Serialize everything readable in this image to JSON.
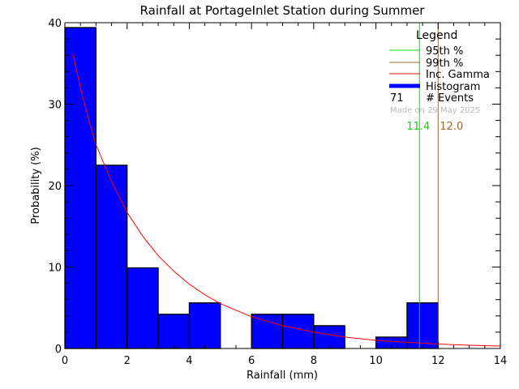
{
  "chart_data": {
    "type": "bar",
    "title": "Rainfall at PortageInlet Station during Summer",
    "xlabel": "Rainfall (mm)",
    "ylabel": "Probability (%)",
    "xlim": [
      0,
      14
    ],
    "ylim": [
      0,
      40
    ],
    "xticks": [
      "0",
      "2",
      "4",
      "6",
      "8",
      "10",
      "12",
      "14"
    ],
    "yticks": [
      "0",
      "10",
      "20",
      "30",
      "40"
    ],
    "grid": false,
    "legend_position": "top-right",
    "bins": [
      {
        "from": 0,
        "to": 1,
        "value": 39.4
      },
      {
        "from": 1,
        "to": 2,
        "value": 22.5
      },
      {
        "from": 2,
        "to": 3,
        "value": 9.9
      },
      {
        "from": 3,
        "to": 4,
        "value": 4.2
      },
      {
        "from": 4,
        "to": 5,
        "value": 5.6
      },
      {
        "from": 5,
        "to": 6,
        "value": 0
      },
      {
        "from": 6,
        "to": 7,
        "value": 4.2
      },
      {
        "from": 7,
        "to": 8,
        "value": 4.2
      },
      {
        "from": 8,
        "to": 9,
        "value": 2.8
      },
      {
        "from": 9,
        "to": 10,
        "value": 0
      },
      {
        "from": 10,
        "to": 11,
        "value": 1.4
      },
      {
        "from": 11,
        "to": 12,
        "value": 5.6
      }
    ],
    "gamma_curve": [
      [
        0.25,
        36.3
      ],
      [
        0.5,
        32
      ],
      [
        0.75,
        28.3
      ],
      [
        1,
        25
      ],
      [
        1.5,
        20.5
      ],
      [
        2,
        16.7
      ],
      [
        2.5,
        13.8
      ],
      [
        3,
        11.4
      ],
      [
        3.5,
        9.5
      ],
      [
        4,
        7.9
      ],
      [
        4.5,
        6.6
      ],
      [
        5,
        5.5
      ],
      [
        6,
        3.9
      ],
      [
        7,
        2.8
      ],
      [
        8,
        2.0
      ],
      [
        9,
        1.4
      ],
      [
        10,
        1.0
      ],
      [
        11,
        0.75
      ],
      [
        12,
        0.55
      ],
      [
        13,
        0.4
      ],
      [
        14,
        0.3
      ]
    ],
    "percentile_95": {
      "value": 11.4,
      "label": "11.4"
    },
    "percentile_99": {
      "value": 12.0,
      "label": "12.0"
    },
    "legend": {
      "title": "Legend",
      "items": [
        {
          "label": "95th %",
          "color": "#00dd00"
        },
        {
          "label": "99th %",
          "color": "#a0642a"
        },
        {
          "label": "Inc. Gamma",
          "color": "#ff0000"
        },
        {
          "label": "Histogram",
          "color": "#0000ff"
        }
      ],
      "events_count": "71",
      "events_label": "# Events",
      "made_on": "Made on 29 May 2025"
    },
    "colors": {
      "bar": "#0000ff",
      "curve": "#ff0000",
      "p95": "#00dd00",
      "p99": "#a0642a",
      "footnote": "#bbbbbb"
    }
  }
}
